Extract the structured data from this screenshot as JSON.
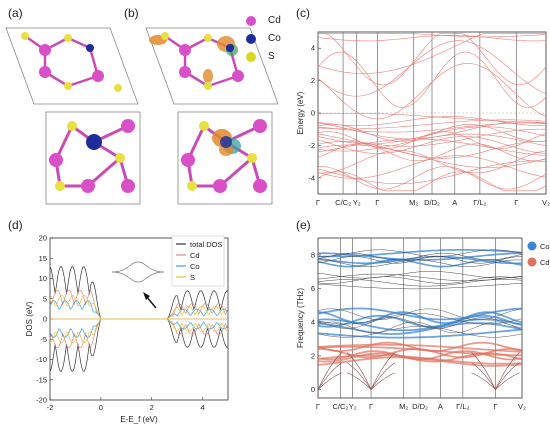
{
  "panels": {
    "a": {
      "label": "(a)"
    },
    "b": {
      "label": "(b)"
    },
    "c": {
      "label": "(c)"
    },
    "d": {
      "label": "(d)"
    },
    "e": {
      "label": "(e)"
    }
  },
  "atom_legend": [
    {
      "name": "Cd",
      "color": "#d94fc8"
    },
    {
      "name": "Co",
      "color": "#1f2c9c"
    },
    {
      "name": "S",
      "color": "#d9d820"
    }
  ],
  "chart_data": [
    {
      "panel": "c",
      "type": "line",
      "title": "",
      "xlabel": "",
      "ylabel": "Energy (eV)",
      "ylim": [
        -5,
        5
      ],
      "yticks": [
        -4,
        -2,
        0,
        2,
        4
      ],
      "x_ticks": [
        "Γ",
        "C/C₂",
        "Y₂",
        "Γ",
        "M₂",
        "D/D₂",
        "A",
        "Γ/L₂",
        "Γ",
        "V₂"
      ],
      "line_color": "#e8807a",
      "band_groups": [
        {
          "name": "",
          "min": 4.5,
          "max": 5.0
        },
        {
          "name": "",
          "min": 1.0,
          "max": 4.5
        },
        {
          "name": "",
          "min": -1.0,
          "max": -0.2
        },
        {
          "name": "",
          "min": -2.5,
          "max": -1.0
        },
        {
          "name": "",
          "min": -4.5,
          "max": -2.5
        }
      ]
    },
    {
      "panel": "d",
      "type": "line",
      "xlabel": "E-E_f (eV)",
      "ylabel": "DOS (eV)",
      "xlim": [
        -2,
        5
      ],
      "ylim": [
        -20,
        20
      ],
      "xticks": [
        -2,
        0,
        2,
        4
      ],
      "yticks": [
        -20,
        -15,
        -10,
        -5,
        0,
        5,
        10,
        15,
        20
      ],
      "series": [
        {
          "name": "total DOS",
          "color": "#333333"
        },
        {
          "name": "Cd",
          "color": "#e08a80"
        },
        {
          "name": "Co",
          "color": "#3aa3d8"
        },
        {
          "name": "S",
          "color": "#e8c040"
        }
      ]
    },
    {
      "panel": "e",
      "type": "line",
      "ylabel": "Frequency (THz)",
      "ylim": [
        -0.5,
        9
      ],
      "yticks": [
        0,
        2,
        4,
        6,
        8
      ],
      "x_ticks": [
        "Γ",
        "C/C₂",
        "Y₂",
        "Γ",
        "M₂",
        "D/D₂",
        "A",
        "Γ/L₂",
        "Γ",
        "V₂"
      ],
      "legend": [
        {
          "name": "Co",
          "color": "#3a86d6"
        },
        {
          "name": "Cd",
          "color": "#e0705e"
        }
      ]
    }
  ]
}
